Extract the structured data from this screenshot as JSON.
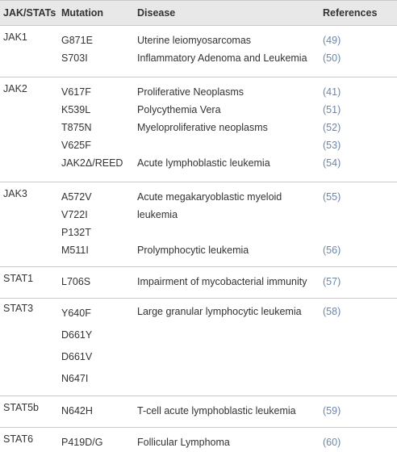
{
  "table": {
    "header": [
      "JAK/STATs",
      "Mutation",
      "Disease",
      "References"
    ],
    "groups": [
      {
        "name": "JAK1",
        "entries": [
          {
            "mutations": [
              "G871E"
            ],
            "disease": "Uterine leiomyosarcomas",
            "references": [
              "(49)"
            ]
          },
          {
            "mutations": [
              "S703I"
            ],
            "disease": "Inflammatory Adenoma and Leukemia",
            "references": [
              "(50)"
            ]
          }
        ]
      },
      {
        "name": "JAK2",
        "entries": [
          {
            "mutations": [
              "V617F"
            ],
            "disease": "Proliferative Neoplasms",
            "references": [
              "(41)"
            ]
          },
          {
            "mutations": [
              "K539L"
            ],
            "disease": "Polycythemia Vera",
            "references": [
              "(51)"
            ]
          },
          {
            "mutations": [
              "T875N",
              "V625F"
            ],
            "disease": "Myeloproliferative neoplasms",
            "references": [
              "(52)",
              "(53)"
            ]
          },
          {
            "mutations": [
              "JAK2Δ/REED"
            ],
            "disease": "Acute lymphoblastic leukemia",
            "references": [
              "(54)"
            ]
          }
        ]
      },
      {
        "name": "JAK3",
        "entries": [
          {
            "mutations": [
              "A572V",
              "V722I",
              "P132T"
            ],
            "disease": "Acute megakaryoblastic myeloid leukemia",
            "references": [
              "(55)"
            ]
          },
          {
            "mutations": [
              "M511I"
            ],
            "disease": "Prolymphocytic leukemia",
            "references": [
              "(56)"
            ]
          }
        ]
      },
      {
        "name": "STAT1",
        "entries": [
          {
            "mutations": [
              "L706S"
            ],
            "disease": "Impairment of mycobacterial immunity",
            "references": [
              "(57)"
            ]
          }
        ]
      },
      {
        "name": "STAT3",
        "entries": [
          {
            "mutations": [
              "Y640F",
              "D661Y",
              "D661V",
              "N647I"
            ],
            "disease": "Large granular lymphocytic leukemia",
            "references": [
              "(58)"
            ]
          }
        ]
      },
      {
        "name": "STAT5b",
        "entries": [
          {
            "mutations": [
              "N642H"
            ],
            "disease": "T-cell acute lymphoblastic leukemia",
            "references": [
              "(59)"
            ]
          }
        ]
      },
      {
        "name": "STAT6",
        "entries": [
          {
            "mutations": [
              "P419D/G"
            ],
            "disease": "Follicular Lymphoma",
            "references": [
              "(60)"
            ]
          }
        ]
      }
    ]
  }
}
